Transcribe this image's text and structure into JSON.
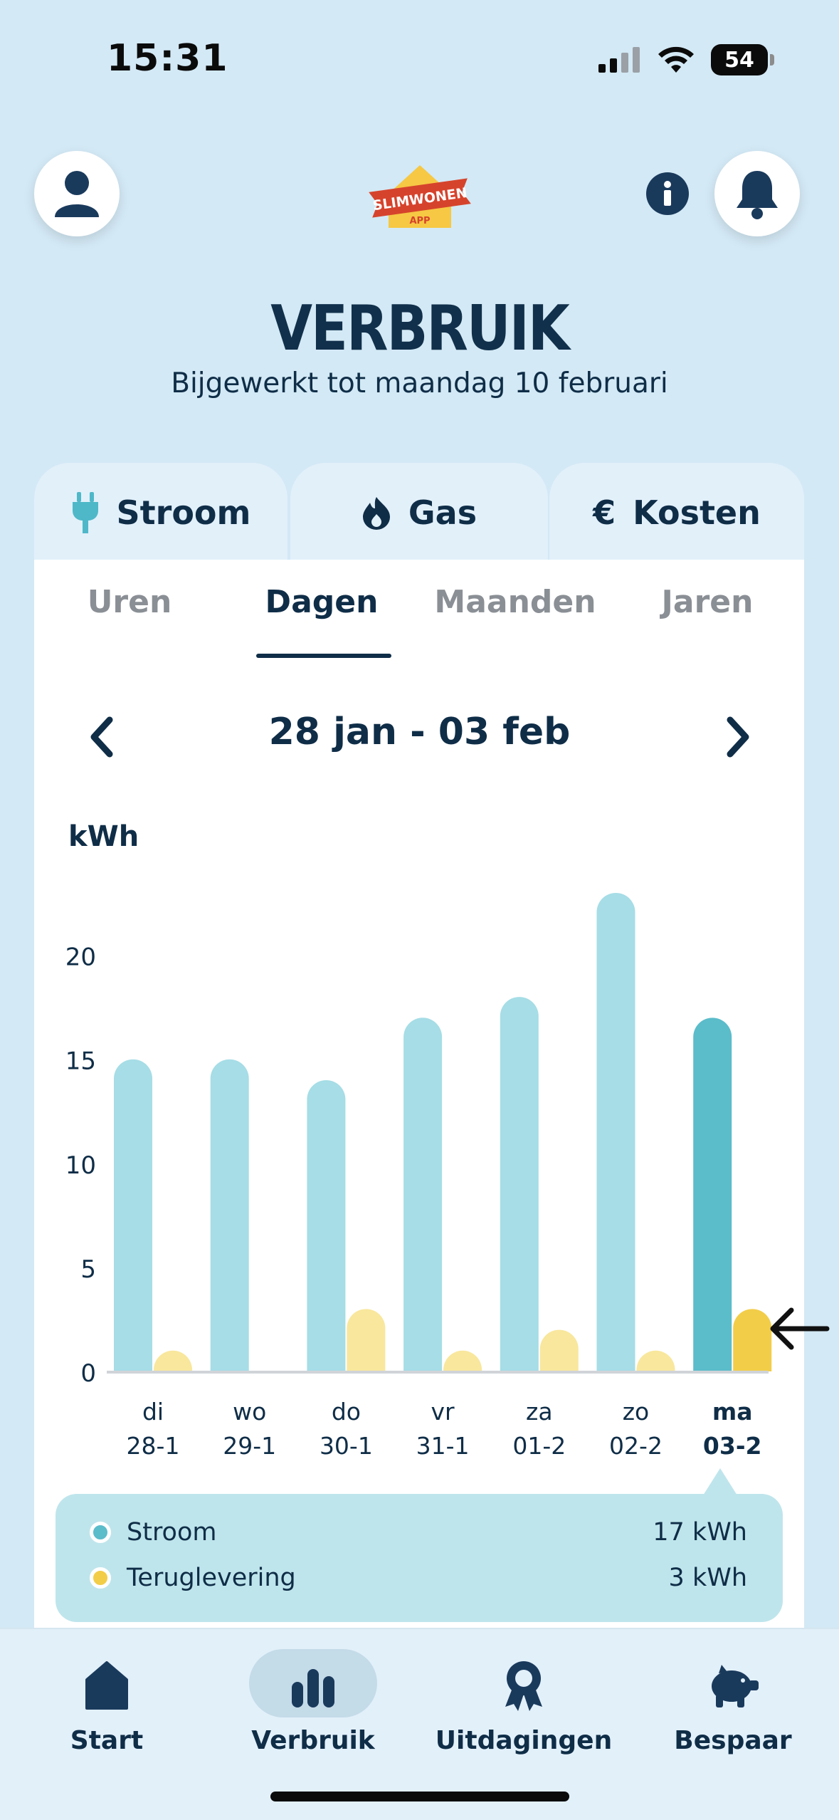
{
  "status": {
    "time": "15:31",
    "battery": "54"
  },
  "header": {
    "title": "VERBRUIK",
    "subtitle": "Bijgewerkt tot maandag 10 februari",
    "logo_text": "SLIMWONEN",
    "logo_sub": "APP"
  },
  "energy_tabs": [
    {
      "label": "Stroom",
      "icon": "plug-icon",
      "active": true
    },
    {
      "label": "Gas",
      "icon": "flame-icon",
      "active": false
    },
    {
      "label": "Kosten",
      "icon": "euro-icon",
      "active": false
    }
  ],
  "period_tabs": [
    {
      "label": "Uren",
      "active": false
    },
    {
      "label": "Dagen",
      "active": true
    },
    {
      "label": "Maanden",
      "active": false
    },
    {
      "label": "Jaren",
      "active": false
    }
  ],
  "range": {
    "label": "28 jan - 03 feb"
  },
  "colors": {
    "stroom": "#a6dde6",
    "stroom_selected": "#5bbcca",
    "teruglevering": "#f8e79d",
    "teruglevering_selected": "#f2cd48",
    "axis": "#d0d4d8",
    "dark": "#0f2d47"
  },
  "chart_data": {
    "type": "bar",
    "ylabel": "kWh",
    "ylim": [
      0,
      23
    ],
    "yticks": [
      0,
      5,
      10,
      15,
      20
    ],
    "categories": [
      {
        "day": "di",
        "date": "28-1"
      },
      {
        "day": "wo",
        "date": "29-1"
      },
      {
        "day": "do",
        "date": "30-1"
      },
      {
        "day": "vr",
        "date": "31-1"
      },
      {
        "day": "za",
        "date": "01-2"
      },
      {
        "day": "zo",
        "date": "02-2"
      },
      {
        "day": "ma",
        "date": "03-2"
      }
    ],
    "selected_index": 6,
    "series": [
      {
        "name": "Stroom",
        "values": [
          15,
          15,
          14,
          17,
          18,
          23,
          17
        ]
      },
      {
        "name": "Teruglevering",
        "values": [
          1,
          0,
          3,
          1,
          2,
          1,
          3
        ]
      }
    ]
  },
  "legend": {
    "items": [
      {
        "label": "Stroom",
        "value": "17 kWh"
      },
      {
        "label": "Teruglevering",
        "value": "3 kWh"
      }
    ]
  },
  "bottom_nav": [
    {
      "label": "Start",
      "icon": "home-icon",
      "active": false
    },
    {
      "label": "Verbruik",
      "icon": "bar-chart-icon",
      "active": true
    },
    {
      "label": "Uitdagingen",
      "icon": "award-icon",
      "active": false
    },
    {
      "label": "Bespaar",
      "icon": "piggy-bank-icon",
      "active": false
    }
  ]
}
